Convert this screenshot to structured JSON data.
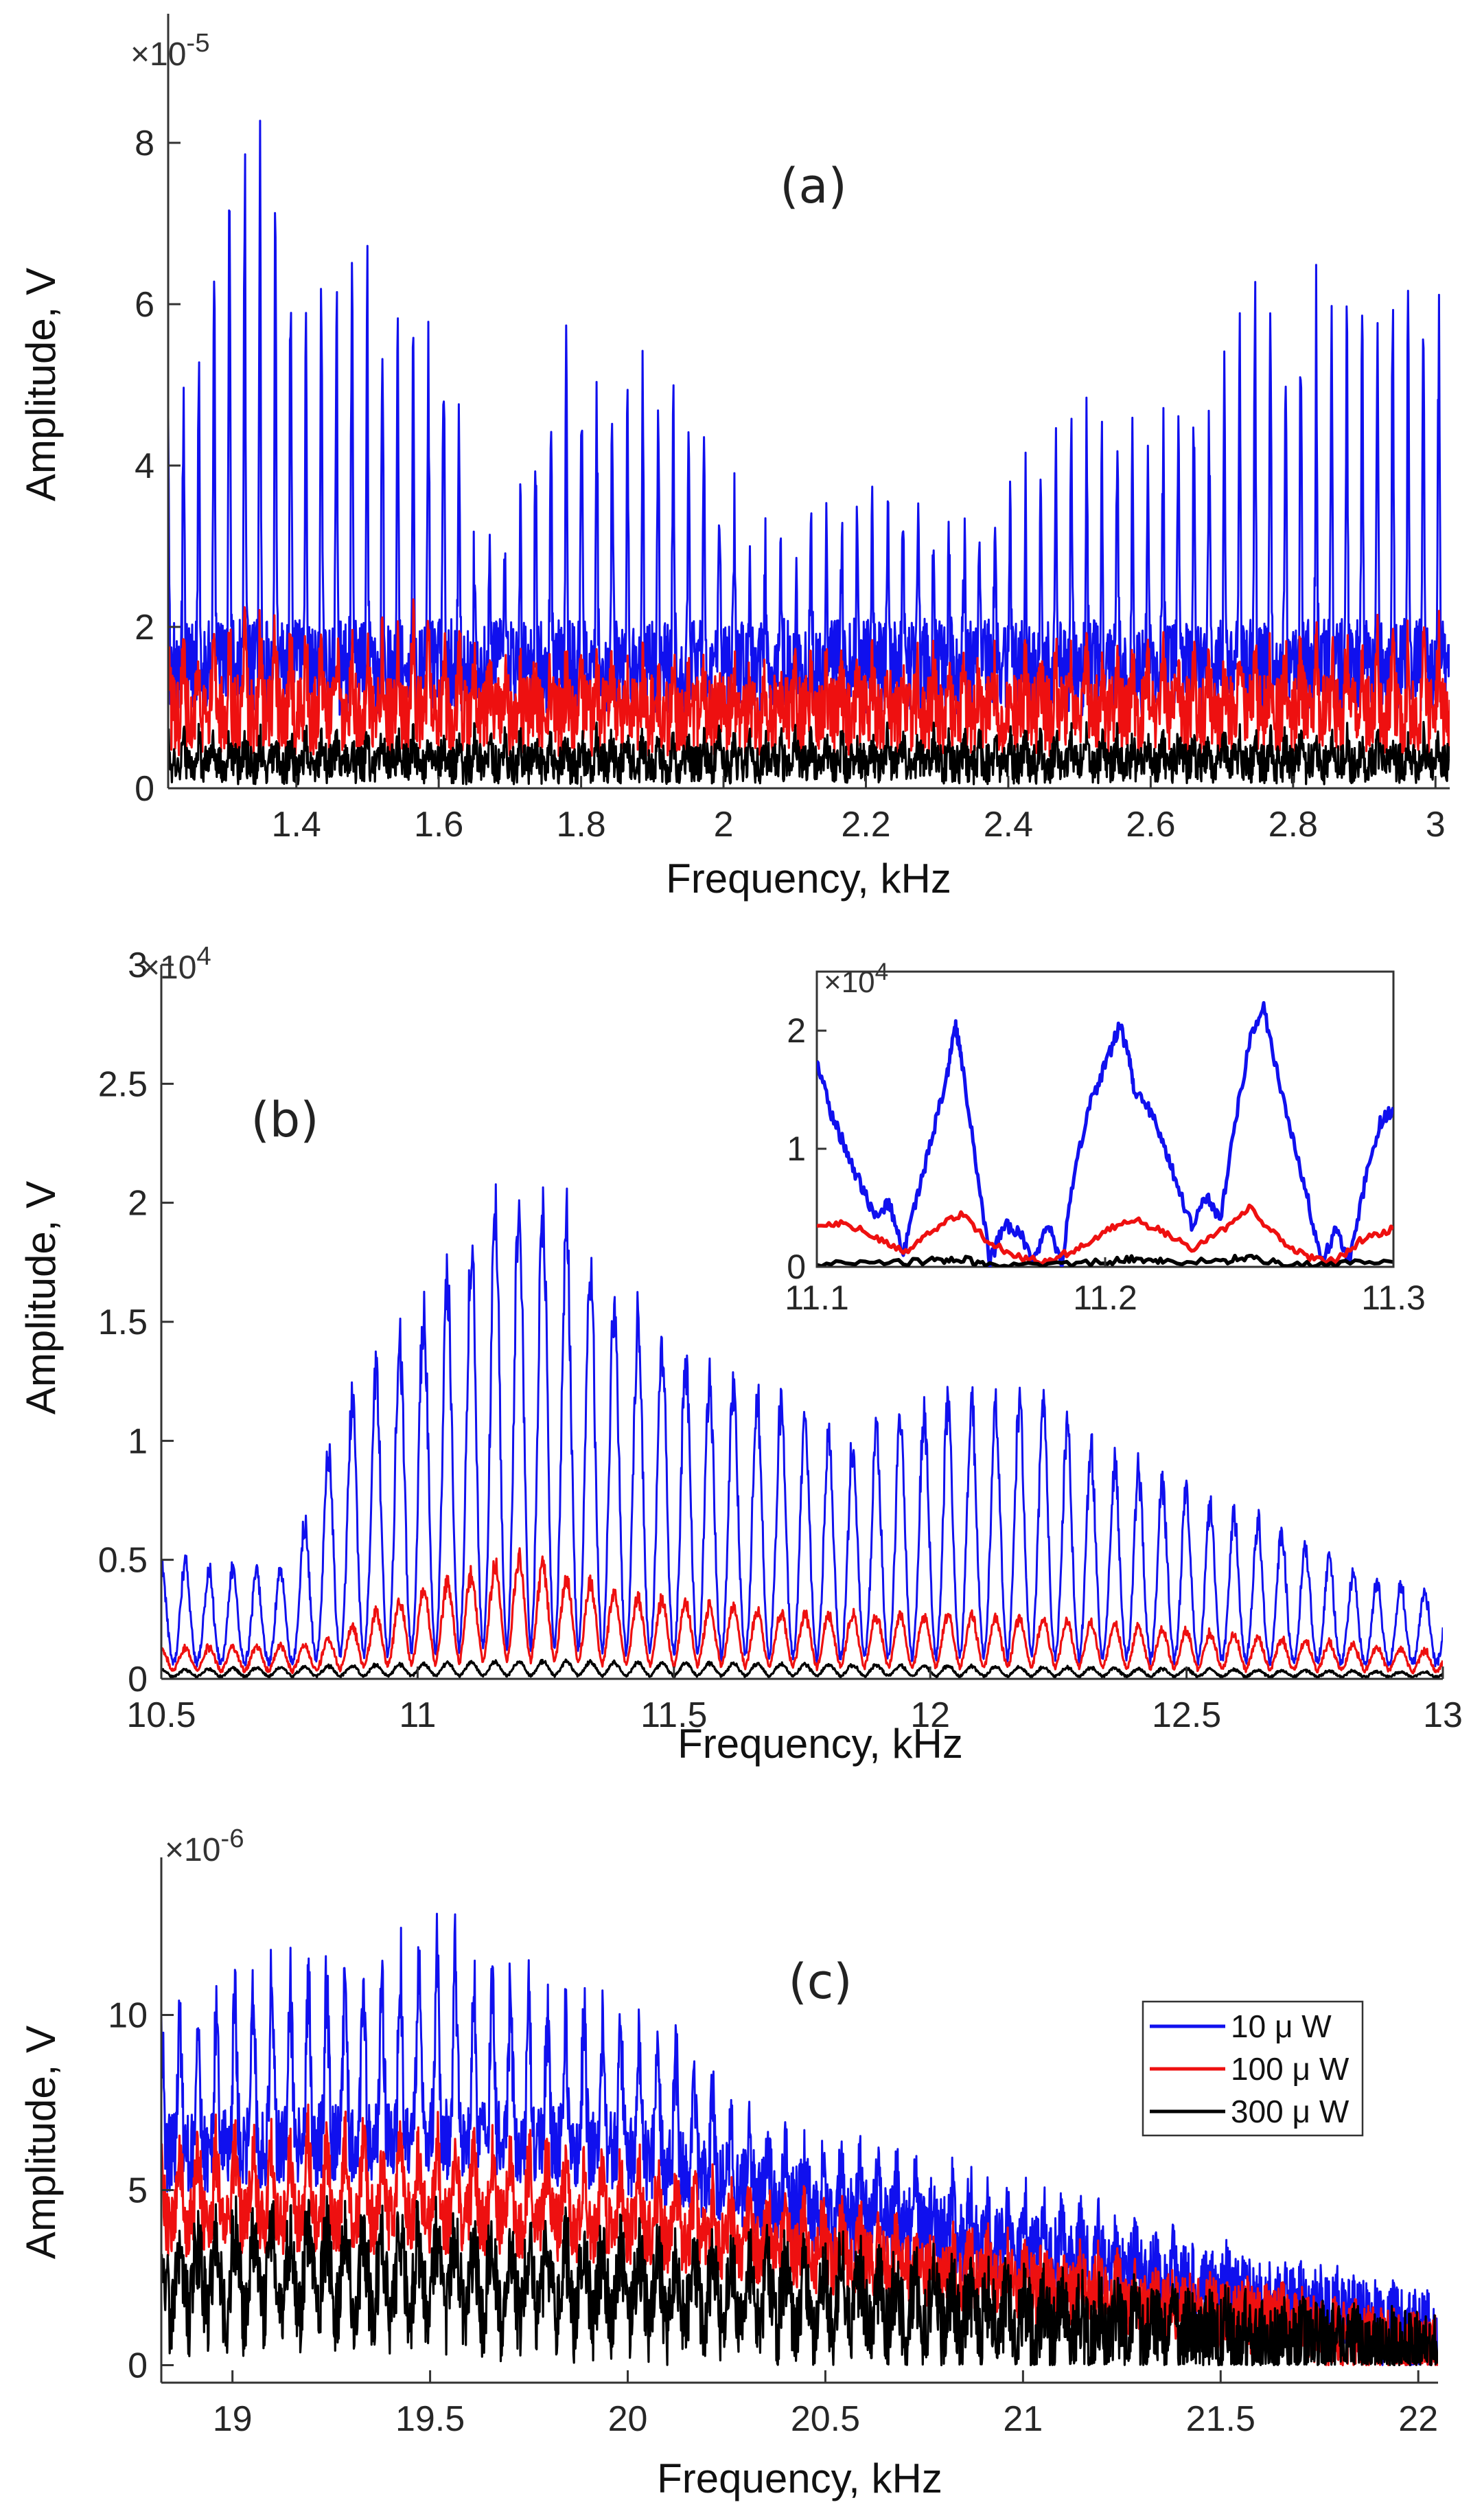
{
  "chart_data": [
    {
      "panel": "(a)",
      "type": "line",
      "title": "",
      "panel_label": "(a)",
      "xlabel": "Frequency, kHz",
      "ylabel": "Amplitude, V",
      "y_multiplier": "×10",
      "y_multiplier_exp": "-5",
      "xlim": [
        1.22,
        3.02
      ],
      "ylim": [
        0,
        9.6
      ],
      "x_ticks": [
        1.4,
        1.6,
        1.8,
        2,
        2.2,
        2.4,
        2.6,
        2.8,
        3
      ],
      "x_tick_labels": [
        "1.4",
        "1.6",
        "1.8",
        "2",
        "2.2",
        "2.4",
        "2.6",
        "2.8",
        "3"
      ],
      "y_ticks": [
        0,
        2,
        4,
        6,
        8
      ],
      "y_tick_labels": [
        "0",
        "2",
        "4",
        "6",
        "8"
      ],
      "series": [
        {
          "name": "10 μW",
          "color": "#1010ee",
          "base": 1.5,
          "noise": 0.6,
          "peak_spacing": 0.0215,
          "peak_width": 0.0012,
          "envelope": [
            [
              1.22,
              4.2
            ],
            [
              1.3,
              7.8
            ],
            [
              1.34,
              8.5
            ],
            [
              1.4,
              6.5
            ],
            [
              1.48,
              6.6
            ],
            [
              1.55,
              6.0
            ],
            [
              1.62,
              5.6
            ],
            [
              1.64,
              3.0
            ],
            [
              1.7,
              3.0
            ],
            [
              1.78,
              5.6
            ],
            [
              1.86,
              5.0
            ],
            [
              1.95,
              5.4
            ],
            [
              2.0,
              3.6
            ],
            [
              2.1,
              2.8
            ],
            [
              2.2,
              3.8
            ],
            [
              2.3,
              3.0
            ],
            [
              2.4,
              3.8
            ],
            [
              2.5,
              4.5
            ],
            [
              2.6,
              4.4
            ],
            [
              2.68,
              5.0
            ],
            [
              2.75,
              6.5
            ],
            [
              2.85,
              6.0
            ],
            [
              2.95,
              6.5
            ],
            [
              3.02,
              6.0
            ]
          ]
        },
        {
          "name": "100 μW",
          "color": "#ee1010",
          "base": 0.9,
          "noise": 0.5,
          "peak_spacing": 0.0215,
          "peak_width": 0.002,
          "envelope": [
            [
              1.22,
              1.6
            ],
            [
              1.3,
              2.0
            ],
            [
              1.45,
              1.8
            ],
            [
              1.6,
              2.0
            ],
            [
              1.7,
              1.4
            ],
            [
              2.0,
              1.3
            ],
            [
              2.4,
              1.5
            ],
            [
              2.8,
              1.7
            ],
            [
              3.02,
              1.8
            ]
          ]
        },
        {
          "name": "300 μW",
          "color": "#000000",
          "base": 0.3,
          "noise": 0.25,
          "peak_spacing": 0.0215,
          "peak_width": 0.002,
          "envelope": [
            [
              1.22,
              0.6
            ],
            [
              3.02,
              0.6
            ]
          ]
        }
      ]
    },
    {
      "panel": "(b)",
      "type": "line",
      "title": "",
      "panel_label": "(b)",
      "xlabel": "Frequency, kHz",
      "ylabel": "Amplitude, V",
      "y_multiplier": "×10",
      "y_multiplier_exp": "4",
      "xlim": [
        10.5,
        13
      ],
      "ylim": [
        0,
        3
      ],
      "x_ticks": [
        10.5,
        11,
        11.5,
        12,
        12.5,
        13
      ],
      "x_tick_labels": [
        "10.5",
        "11",
        "11.5",
        "12",
        "12.5",
        "13"
      ],
      "y_ticks": [
        0,
        0.5,
        1,
        1.5,
        2,
        2.5,
        3
      ],
      "y_tick_labels": [
        "0",
        "0.5",
        "1",
        "1.5",
        "2",
        "2.5",
        "3"
      ],
      "series": [
        {
          "name": "10 μW",
          "color": "#1010ee",
          "base": 0.05,
          "noise": 0.02,
          "peak_spacing": 0.0465,
          "peak_width": 0.009,
          "envelope": [
            [
              10.5,
              0.55
            ],
            [
              10.6,
              0.5
            ],
            [
              10.75,
              0.5
            ],
            [
              10.85,
              1.2
            ],
            [
              10.95,
              1.5
            ],
            [
              11.05,
              1.8
            ],
            [
              11.15,
              2.15
            ],
            [
              11.22,
              2.25
            ],
            [
              11.3,
              2.05
            ],
            [
              11.4,
              1.7
            ],
            [
              11.55,
              1.4
            ],
            [
              11.7,
              1.25
            ],
            [
              11.85,
              1.05
            ],
            [
              12.0,
              1.25
            ],
            [
              12.2,
              1.25
            ],
            [
              12.35,
              1.0
            ],
            [
              12.5,
              0.85
            ],
            [
              12.7,
              0.65
            ],
            [
              12.85,
              0.45
            ],
            [
              13.0,
              0.4
            ]
          ]
        },
        {
          "name": "100 μW",
          "color": "#ee1010",
          "base": 0.02,
          "noise": 0.01,
          "peak_spacing": 0.0465,
          "peak_width": 0.011,
          "envelope": [
            [
              10.5,
              0.14
            ],
            [
              10.8,
              0.15
            ],
            [
              11.0,
              0.4
            ],
            [
              11.2,
              0.55
            ],
            [
              11.4,
              0.38
            ],
            [
              11.7,
              0.3
            ],
            [
              12.2,
              0.28
            ],
            [
              12.6,
              0.2
            ],
            [
              13.0,
              0.12
            ]
          ]
        },
        {
          "name": "300 μW",
          "color": "#000000",
          "base": 0.005,
          "noise": 0.005,
          "peak_spacing": 0.0465,
          "peak_width": 0.011,
          "envelope": [
            [
              10.5,
              0.04
            ],
            [
              11.2,
              0.08
            ],
            [
              12.0,
              0.06
            ],
            [
              13.0,
              0.03
            ]
          ]
        }
      ],
      "inset": {
        "xlim": [
          11.1,
          11.3
        ],
        "ylim": [
          0,
          2.5
        ],
        "y_multiplier": "×10",
        "y_multiplier_exp": "4",
        "x_ticks": [
          11.1,
          11.2,
          11.3
        ],
        "x_tick_labels": [
          "11.1",
          "11.2",
          "11.3"
        ],
        "y_ticks": [
          0,
          1,
          2
        ],
        "y_tick_labels": [
          "0",
          "1",
          "2"
        ],
        "series": [
          {
            "name": "10 μW",
            "color": "#1010ee",
            "x": [
              11.1,
              11.105,
              11.11,
              11.115,
              11.12,
              11.125,
              11.13,
              11.135,
              11.14,
              11.145,
              11.148,
              11.15,
              11.155,
              11.16,
              11.165,
              11.17,
              11.175,
              11.18,
              11.185,
              11.19,
              11.195,
              11.2,
              11.205,
              11.208,
              11.21,
              11.215,
              11.22,
              11.225,
              11.23,
              11.235,
              11.24,
              11.245,
              11.25,
              11.255,
              11.26,
              11.265,
              11.27,
              11.275,
              11.28,
              11.285,
              11.29,
              11.295,
              11.3
            ],
            "y": [
              1.75,
              1.3,
              1.0,
              0.7,
              0.45,
              0.55,
              0.1,
              0.6,
              1.1,
              1.6,
              2.05,
              1.8,
              0.9,
              0.05,
              0.35,
              0.3,
              0.05,
              0.35,
              0.05,
              0.9,
              1.4,
              1.7,
              2.05,
              1.8,
              1.5,
              1.35,
              1.05,
              0.7,
              0.35,
              0.6,
              0.4,
              1.2,
              1.9,
              2.2,
              1.6,
              1.1,
              0.6,
              0.05,
              0.3,
              0.05,
              0.7,
              1.2,
              1.35
            ]
          },
          {
            "name": "100 μW",
            "color": "#ee1010",
            "x": [
              11.1,
              11.11,
              11.12,
              11.13,
              11.14,
              11.15,
              11.16,
              11.17,
              11.18,
              11.19,
              11.2,
              11.21,
              11.22,
              11.23,
              11.24,
              11.25,
              11.26,
              11.27,
              11.28,
              11.29,
              11.3
            ],
            "y": [
              0.35,
              0.38,
              0.25,
              0.12,
              0.3,
              0.45,
              0.2,
              0.08,
              0.05,
              0.15,
              0.3,
              0.4,
              0.3,
              0.15,
              0.3,
              0.5,
              0.25,
              0.08,
              0.05,
              0.25,
              0.32
            ]
          },
          {
            "name": "300 μW",
            "color": "#000000",
            "x": [
              11.1,
              11.12,
              11.14,
              11.15,
              11.16,
              11.18,
              11.2,
              11.21,
              11.22,
              11.24,
              11.25,
              11.26,
              11.28,
              11.3
            ],
            "y": [
              0.02,
              0.03,
              0.05,
              0.07,
              0.02,
              0.01,
              0.04,
              0.07,
              0.04,
              0.05,
              0.08,
              0.03,
              0.02,
              0.04
            ]
          }
        ]
      }
    },
    {
      "panel": "(c)",
      "type": "line",
      "title": "",
      "panel_label": "(c)",
      "xlabel": "Frequency, kHz",
      "ylabel": "Amplitude, V",
      "y_multiplier": "×10",
      "y_multiplier_exp": "-6",
      "xlim": [
        18.82,
        22.05
      ],
      "ylim": [
        -0.5,
        14.5
      ],
      "x_ticks": [
        19,
        19.5,
        20,
        20.5,
        21,
        21.5,
        22
      ],
      "x_tick_labels": [
        "19",
        "19.5",
        "20",
        "20.5",
        "21",
        "21.5",
        "22"
      ],
      "y_ticks": [
        0,
        5,
        10
      ],
      "y_tick_labels": [
        "0",
        "5",
        "10"
      ],
      "legend": {
        "position": "right",
        "entries": [
          {
            "label": "10 μ W",
            "color": "#1010ee"
          },
          {
            "label": "100 μ W",
            "color": "#ee1010"
          },
          {
            "label": "300 μ W",
            "color": "#000000"
          }
        ]
      },
      "series": [
        {
          "name": "10 μW",
          "color": "#1010ee",
          "base": 6.0,
          "noise": 1.2,
          "peak_spacing": 0.0465,
          "peak_width": 0.005,
          "envelope": [
            [
              18.82,
              10.0
            ],
            [
              19.1,
              11.5
            ],
            [
              19.3,
              11.5
            ],
            [
              19.5,
              12.2
            ],
            [
              19.8,
              10.5
            ],
            [
              20.1,
              9.5
            ],
            [
              20.3,
              6.5
            ],
            [
              20.6,
              5.5
            ],
            [
              21.0,
              4.5
            ],
            [
              21.5,
              2.5
            ],
            [
              22.05,
              1.0
            ]
          ],
          "base_envelope": [
            [
              18.82,
              6.0
            ],
            [
              19.5,
              6.5
            ],
            [
              20.0,
              6.0
            ],
            [
              20.5,
              4.3
            ],
            [
              21.0,
              3.2
            ],
            [
              21.5,
              2.0
            ],
            [
              22.05,
              0.8
            ]
          ]
        },
        {
          "name": "100 μW",
          "color": "#ee1010",
          "base": 3.0,
          "noise": 1.0,
          "peak_spacing": 0.0465,
          "peak_width": 0.006,
          "envelope": [
            [
              18.82,
              6.2
            ],
            [
              19.2,
              6.5
            ],
            [
              19.6,
              6.4
            ],
            [
              20.0,
              5.5
            ],
            [
              20.4,
              4.4
            ],
            [
              20.8,
              3.5
            ],
            [
              21.2,
              2.6
            ],
            [
              21.6,
              1.6
            ],
            [
              22.05,
              0.5
            ]
          ],
          "base_envelope": [
            [
              18.82,
              4.0
            ],
            [
              19.5,
              4.2
            ],
            [
              20.0,
              3.8
            ],
            [
              20.5,
              3.0
            ],
            [
              21.0,
              2.2
            ],
            [
              21.5,
              1.4
            ],
            [
              22.05,
              0.4
            ]
          ]
        },
        {
          "name": "300 μW",
          "color": "#000000",
          "base": 0.2,
          "noise": 1.2,
          "peak_spacing": 0.0465,
          "peak_width": 0.012,
          "envelope": [
            [
              18.82,
              3.8
            ],
            [
              19.2,
              4.0
            ],
            [
              19.6,
              3.8
            ],
            [
              20.0,
              3.4
            ],
            [
              20.5,
              2.9
            ],
            [
              21.0,
              2.0
            ],
            [
              21.5,
              1.2
            ],
            [
              22.05,
              0.4
            ]
          ],
          "base_envelope": [
            [
              18.82,
              0.8
            ],
            [
              19.5,
              0.8
            ],
            [
              20.5,
              0.6
            ],
            [
              21.5,
              0.4
            ],
            [
              22.05,
              0.2
            ]
          ]
        }
      ]
    }
  ]
}
